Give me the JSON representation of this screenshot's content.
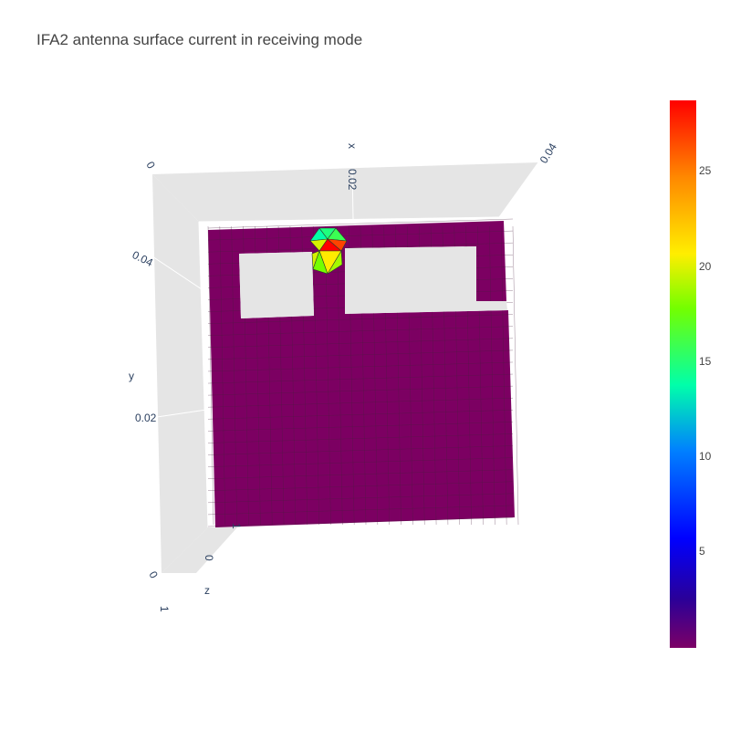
{
  "chart_data": {
    "type": "mesh3d",
    "title": "IFA2 antenna surface current in receiving mode",
    "axes": {
      "x": {
        "label": "x",
        "ticks": [
          "0",
          "0.02",
          "0.04"
        ]
      },
      "y": {
        "label": "y",
        "ticks": [
          "0.04",
          "0.02"
        ]
      },
      "z": {
        "label": "z",
        "ticks": [
          "1",
          "0",
          "1"
        ]
      }
    },
    "colorscale": "rainbow",
    "colorbar": {
      "ticks": [
        "25",
        "20",
        "15",
        "10",
        "5"
      ],
      "min": 0,
      "max": 29
    },
    "background_current": 0.3,
    "feed_region_currents": [
      14,
      15,
      16,
      20,
      29,
      27,
      20,
      21,
      19,
      18
    ]
  }
}
